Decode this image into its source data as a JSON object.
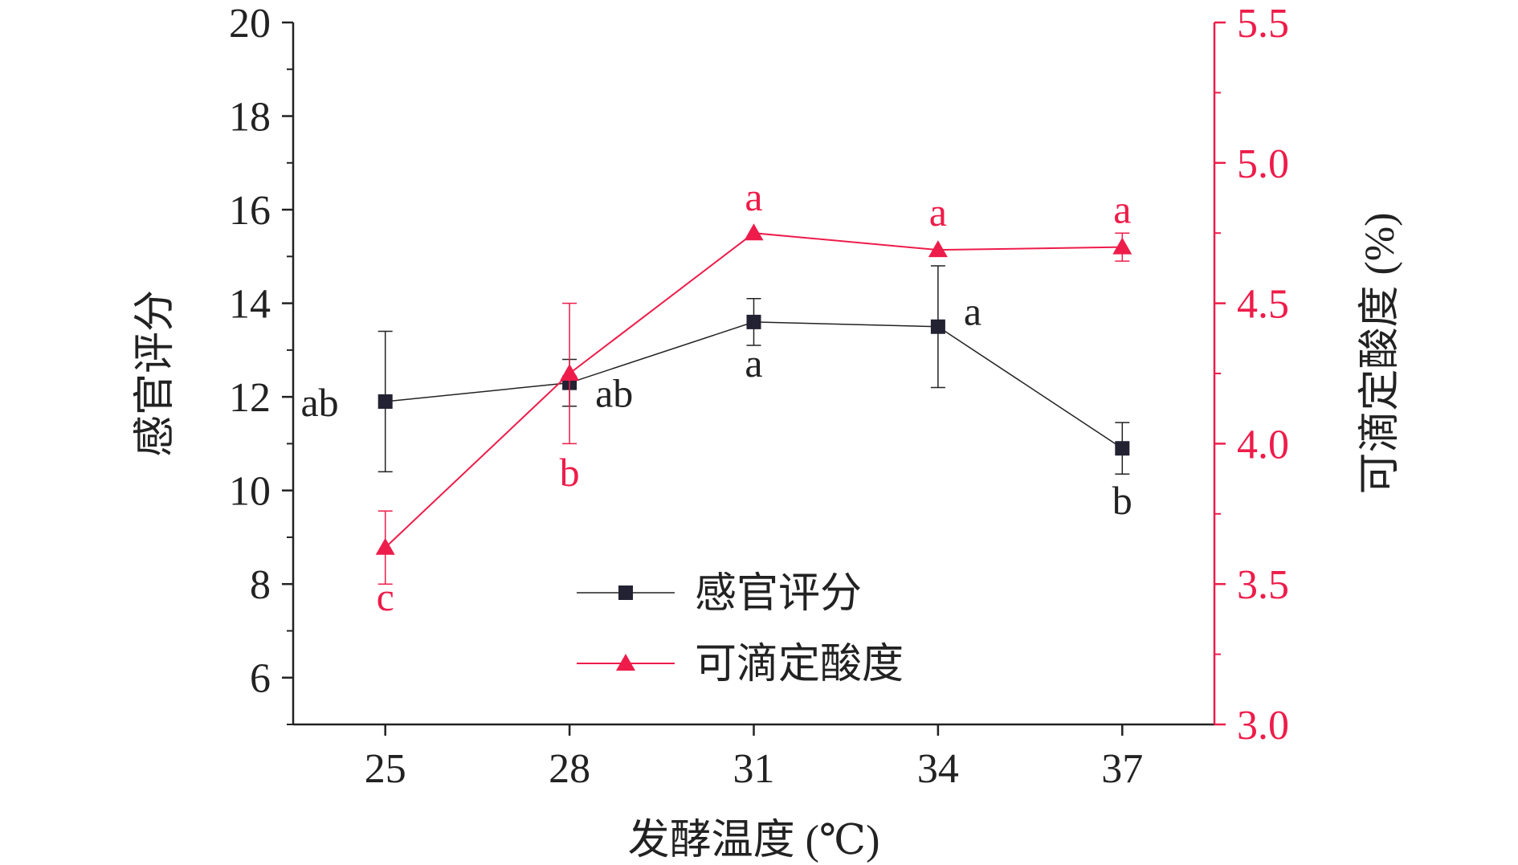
{
  "chart_data": {
    "type": "line",
    "xlabel": "发酵温度 (℃)",
    "x": [
      25,
      28,
      31,
      34,
      37
    ],
    "xlim": [
      23.5,
      38.5
    ],
    "x_ticks": [
      "25",
      "28",
      "31",
      "34",
      "37"
    ],
    "y_left": {
      "label": "感官评分",
      "lim": [
        5,
        20
      ],
      "ticks": [
        "6",
        "8",
        "10",
        "12",
        "14",
        "16",
        "18",
        "20"
      ],
      "color": "#222222"
    },
    "y_right": {
      "label": "可滴定酸度 (%)",
      "lim": [
        3.0,
        5.5
      ],
      "ticks": [
        "3.0",
        "3.5",
        "4.0",
        "4.5",
        "5.0",
        "5.5"
      ],
      "color": "#ee1c4a"
    },
    "series": [
      {
        "name": "感官评分",
        "axis": "left",
        "marker": "square",
        "color": "#222222",
        "values": [
          11.9,
          12.3,
          13.6,
          13.5,
          10.9
        ],
        "errors": [
          1.5,
          0.5,
          0.5,
          1.3,
          0.55
        ],
        "labels": [
          "ab",
          "ab",
          "a",
          "a",
          "b"
        ]
      },
      {
        "name": "可滴定酸度",
        "axis": "right",
        "marker": "triangle",
        "color": "#ee1c4a",
        "values": [
          3.63,
          4.25,
          4.75,
          4.69,
          4.7
        ],
        "errors": [
          0.13,
          0.25,
          0.0,
          0.0,
          0.05
        ],
        "labels": [
          "c",
          "b",
          "a",
          "a",
          "a"
        ]
      }
    ],
    "legend": "bottom-center",
    "grid": false
  }
}
